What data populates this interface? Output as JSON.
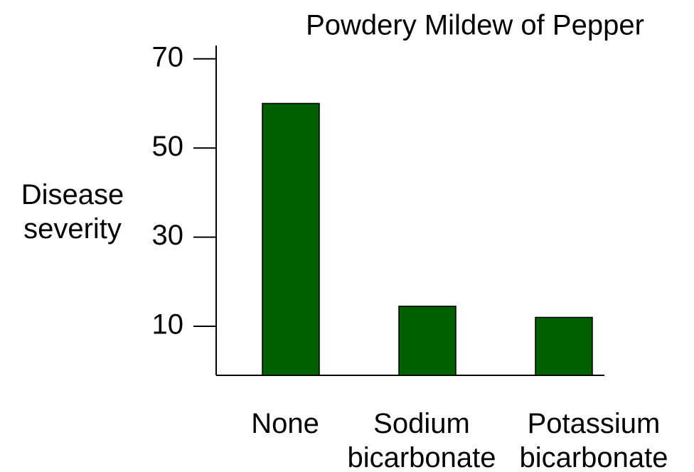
{
  "chart_data": {
    "type": "bar",
    "title": "Powdery Mildew of Pepper",
    "y_label": "Disease\nseverity",
    "categories": [
      "None",
      "Sodium\nbicarbonate",
      "Potassium\nbicarbonate"
    ],
    "values": [
      60,
      14.5,
      12
    ],
    "color": "#006000",
    "ylim": [
      -1,
      73
    ],
    "yticks": [
      10,
      30,
      50,
      70
    ],
    "grid": false
  }
}
